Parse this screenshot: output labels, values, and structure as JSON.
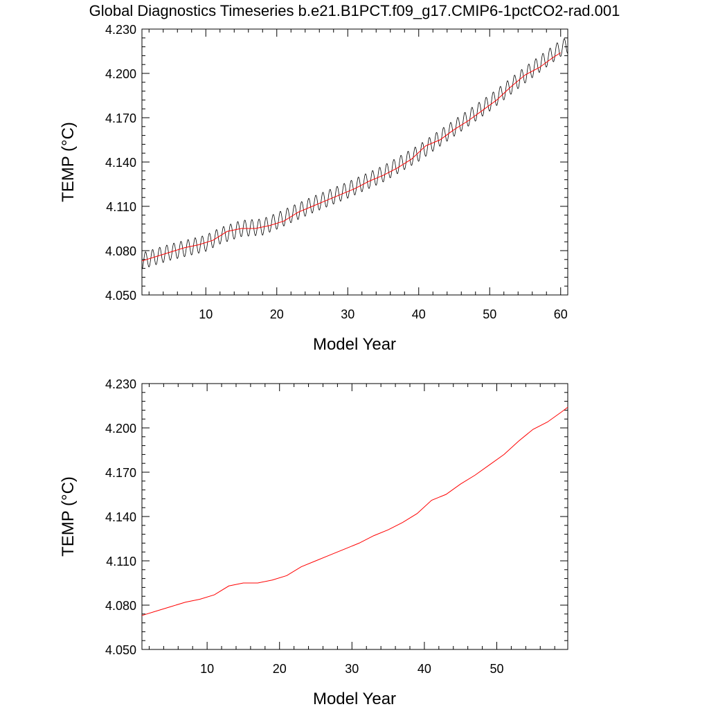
{
  "title": "Global Diagnostics Timeseries b.e21.B1PCT.f09_g17.CMIP6-1pctCO2-rad.001",
  "colors": {
    "monthly": "#000000",
    "annual": "#ff0000",
    "axis": "#000000",
    "background": "#ffffff"
  },
  "chart_data": [
    {
      "type": "line",
      "xlabel": "Model Year",
      "ylabel": "TEMP (°C)",
      "xlim": [
        1,
        61
      ],
      "ylim": [
        4.05,
        4.23
      ],
      "xticks": [
        10,
        20,
        30,
        40,
        50,
        60
      ],
      "xtick_labels": [
        "10",
        "20",
        "30",
        "40",
        "50",
        "60"
      ],
      "yticks": [
        4.05,
        4.08,
        4.11,
        4.14,
        4.17,
        4.2,
        4.23
      ],
      "ytick_labels": [
        "4.050",
        "4.080",
        "4.110",
        "4.140",
        "4.170",
        "4.200",
        "4.230"
      ],
      "grid": false,
      "series": [
        {
          "role": "monthly",
          "color": "#000000",
          "x_start": 1,
          "x_end": 61,
          "seasonal_amplitude": 0.0055,
          "trend_x": [
            1,
            5,
            10,
            12,
            15,
            18,
            20,
            25,
            30,
            35,
            40,
            45,
            50,
            55,
            60,
            61
          ],
          "trend_y": [
            4.073,
            4.079,
            4.085,
            4.09,
            4.095,
            4.096,
            4.1,
            4.111,
            4.121,
            4.132,
            4.146,
            4.163,
            4.18,
            4.199,
            4.217,
            4.219
          ]
        },
        {
          "role": "annual",
          "color": "#ff0000",
          "x": [
            1,
            3,
            5,
            7,
            9,
            11,
            13,
            15,
            17,
            19,
            21,
            23,
            25,
            27,
            29,
            31,
            33,
            35,
            37,
            39,
            41,
            43,
            45,
            47,
            49,
            51,
            53,
            55,
            57,
            59,
            60
          ],
          "y": [
            4.073,
            4.076,
            4.079,
            4.082,
            4.084,
            4.087,
            4.093,
            4.095,
            4.095,
            4.097,
            4.1,
            4.106,
            4.11,
            4.114,
            4.118,
            4.122,
            4.127,
            4.131,
            4.136,
            4.142,
            4.151,
            4.155,
            4.162,
            4.168,
            4.175,
            4.182,
            4.191,
            4.199,
            4.204,
            4.211,
            4.214
          ]
        }
      ]
    },
    {
      "type": "line",
      "xlabel": "Model Year",
      "ylabel": "TEMP (°C)",
      "xlim": [
        1,
        59.8
      ],
      "ylim": [
        4.05,
        4.23
      ],
      "xticks": [
        10,
        20,
        30,
        40,
        50
      ],
      "xtick_labels": [
        "10",
        "20",
        "30",
        "40",
        "50"
      ],
      "yticks": [
        4.05,
        4.08,
        4.11,
        4.14,
        4.17,
        4.2,
        4.23
      ],
      "ytick_labels": [
        "4.050",
        "4.080",
        "4.110",
        "4.140",
        "4.170",
        "4.200",
        "4.230"
      ],
      "grid": false,
      "series": [
        {
          "role": "annual",
          "color": "#ff0000",
          "x": [
            1,
            3,
            5,
            7,
            9,
            11,
            13,
            15,
            17,
            19,
            21,
            23,
            25,
            27,
            29,
            31,
            33,
            35,
            37,
            39,
            41,
            43,
            45,
            47,
            49,
            51,
            53,
            55,
            57,
            59,
            59.8
          ],
          "y": [
            4.073,
            4.076,
            4.079,
            4.082,
            4.084,
            4.087,
            4.093,
            4.095,
            4.095,
            4.097,
            4.1,
            4.106,
            4.11,
            4.114,
            4.118,
            4.122,
            4.127,
            4.131,
            4.136,
            4.142,
            4.151,
            4.155,
            4.162,
            4.168,
            4.175,
            4.182,
            4.191,
            4.199,
            4.204,
            4.211,
            4.214
          ]
        }
      ]
    }
  ]
}
